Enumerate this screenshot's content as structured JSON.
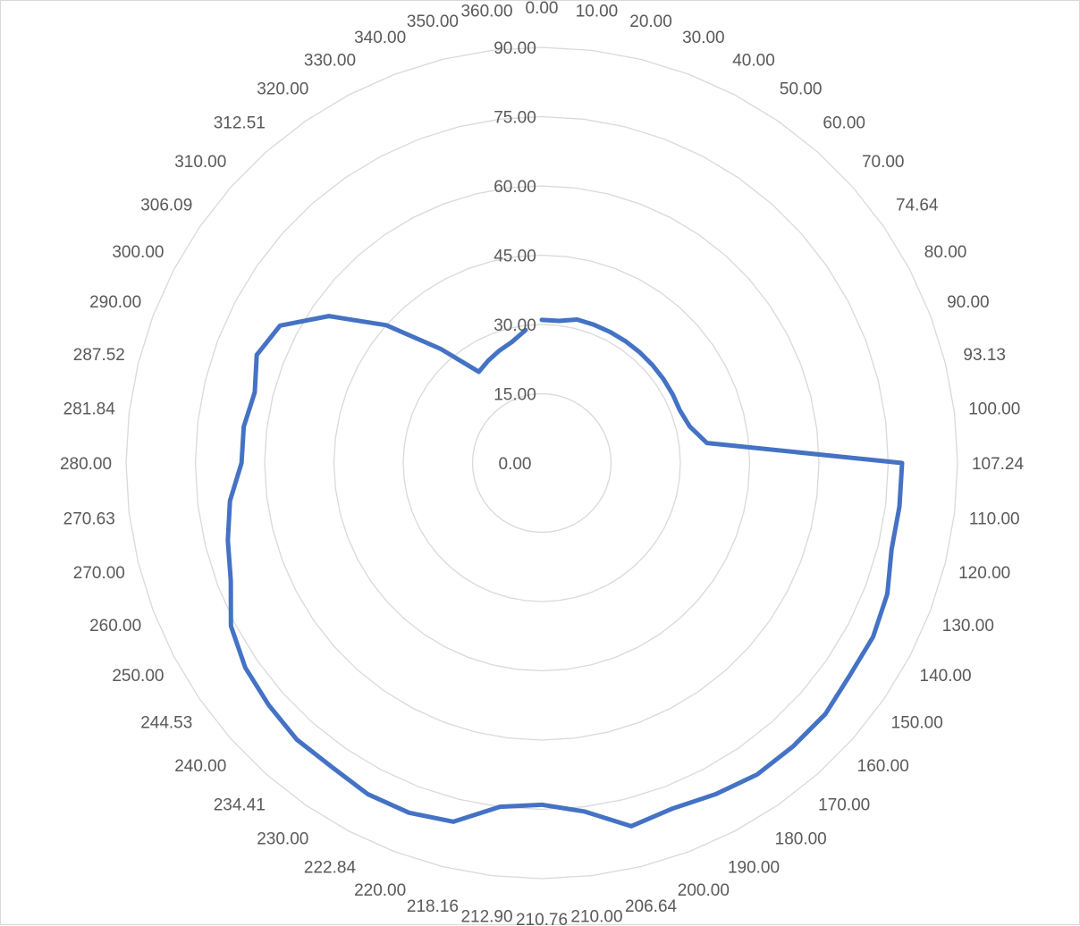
{
  "chart_data": {
    "type": "radar",
    "categories": [
      "0.00",
      "10.00",
      "20.00",
      "30.00",
      "40.00",
      "50.00",
      "60.00",
      "70.00",
      "74.64",
      "80.00",
      "90.00",
      "93.13",
      "100.00",
      "107.24",
      "110.00",
      "120.00",
      "130.00",
      "140.00",
      "150.00",
      "160.00",
      "170.00",
      "180.00",
      "190.00",
      "200.00",
      "206.64",
      "210.00",
      "210.76",
      "212.90",
      "218.16",
      "220.00",
      "222.84",
      "230.00",
      "234.41",
      "240.00",
      "244.53",
      "250.00",
      "260.00",
      "270.00",
      "270.63",
      "280.00",
      "281.84",
      "287.52",
      "290.00",
      "300.00",
      "306.09",
      "310.00",
      "312.51",
      "320.00",
      "330.00",
      "340.00",
      "350.00",
      "360.00"
    ],
    "ring_labels": [
      "0.00",
      "15.00",
      "30.00",
      "45.00",
      "60.00",
      "75.00",
      "90.00"
    ],
    "series": [
      {
        "values": [
          31,
          31,
          32,
          32,
          32,
          32,
          32,
          32,
          32,
          32,
          32,
          33,
          36,
          78,
          78,
          78,
          80,
          81,
          81,
          82,
          82,
          82,
          81,
          80,
          81,
          76,
          74,
          75,
          80,
          81,
          81,
          80,
          80,
          79,
          78,
          76,
          72,
          70,
          68,
          65,
          65,
          64,
          66,
          64,
          56,
          45,
          33,
          24,
          25,
          26,
          27,
          29
        ],
        "color": "#4472c4"
      }
    ],
    "rmin": 0,
    "rmax": 90,
    "grid": true,
    "gridline_color": "#d9d9d9",
    "label_color": "#595959",
    "legend": "none"
  }
}
